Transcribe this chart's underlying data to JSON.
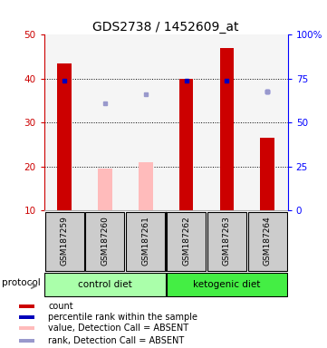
{
  "title": "GDS2738 / 1452609_at",
  "samples": [
    "GSM187259",
    "GSM187260",
    "GSM187261",
    "GSM187262",
    "GSM187263",
    "GSM187264"
  ],
  "ylim_left": [
    10,
    50
  ],
  "ylim_right": [
    0,
    100
  ],
  "yticks_left": [
    10,
    20,
    30,
    40,
    50
  ],
  "yticks_right": [
    0,
    25,
    50,
    75,
    100
  ],
  "yticklabels_right": [
    "0",
    "25",
    "50",
    "75",
    "100%"
  ],
  "red_bars": [
    43.5,
    null,
    null,
    40.0,
    47.0,
    26.5
  ],
  "pink_bars": [
    null,
    19.5,
    21.0,
    null,
    null,
    null
  ],
  "blue_squares": [
    39.5,
    null,
    null,
    39.5,
    39.5,
    37.0
  ],
  "lavender_squares": [
    null,
    34.5,
    36.5,
    null,
    null,
    37.0
  ],
  "bar_width": 0.35,
  "red_color": "#cc0000",
  "pink_color": "#ffbbbb",
  "blue_color": "#0000bb",
  "lavender_color": "#9999cc",
  "grid_color": "#888888",
  "protocol_groups": [
    {
      "label": "control diet",
      "start": 0,
      "end": 3,
      "color": "#aaffaa"
    },
    {
      "label": "ketogenic diet",
      "start": 3,
      "end": 6,
      "color": "#44ee44"
    }
  ],
  "protocol_label": "protocol",
  "sample_bg_color": "#cccccc",
  "legend_items": [
    {
      "color": "#cc0000",
      "label": "count"
    },
    {
      "color": "#0000bb",
      "label": "percentile rank within the sample"
    },
    {
      "color": "#ffbbbb",
      "label": "value, Detection Call = ABSENT"
    },
    {
      "color": "#9999cc",
      "label": "rank, Detection Call = ABSENT"
    }
  ],
  "title_fontsize": 10,
  "tick_fontsize": 7.5,
  "legend_fontsize": 7,
  "sample_fontsize": 6.5
}
